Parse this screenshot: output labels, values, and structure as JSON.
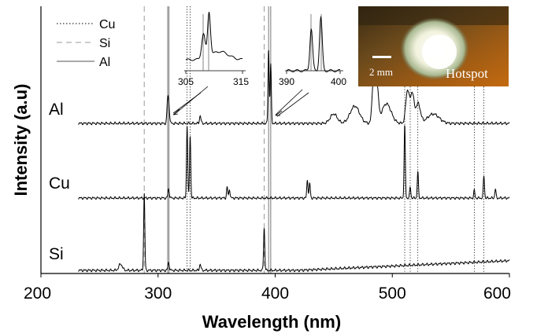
{
  "chart_data": {
    "type": "line",
    "title": "",
    "xlabel": "Wavelength (nm)",
    "ylabel": "Intensity (a.u)",
    "xlim": [
      200,
      600
    ],
    "xticks": [
      200,
      300,
      400,
      500,
      600
    ],
    "legend": {
      "placement": "top-left",
      "entries": [
        {
          "name": "Cu",
          "style": "dotted"
        },
        {
          "name": "Si",
          "style": "dashed"
        },
        {
          "name": "Al",
          "style": "solid"
        }
      ]
    },
    "reference_lines": {
      "Cu": [
        324.8,
        327.4,
        510.6,
        515.3,
        521.8,
        570.0,
        578.2
      ],
      "Si": [
        288.2,
        390.6
      ],
      "Al": [
        308.2,
        309.3,
        394.4,
        396.2
      ]
    },
    "series": [
      {
        "name": "Al",
        "baseline": 0.05,
        "peaks": [
          {
            "x": 308.2,
            "y": 0.3,
            "w": 0.6
          },
          {
            "x": 309.3,
            "y": 0.2,
            "w": 0.6
          },
          {
            "x": 336,
            "y": 0.1,
            "w": 0.6
          },
          {
            "x": 394.4,
            "y": 0.95,
            "w": 0.5
          },
          {
            "x": 396.2,
            "y": 0.75,
            "w": 0.5
          },
          {
            "x": 450,
            "y": 0.12,
            "w": 3
          },
          {
            "x": 468,
            "y": 0.22,
            "w": 4
          },
          {
            "x": 484,
            "y": 0.6,
            "w": 1.2
          },
          {
            "x": 487,
            "y": 0.45,
            "w": 1.2
          },
          {
            "x": 495,
            "y": 0.25,
            "w": 4
          },
          {
            "x": 513,
            "y": 0.42,
            "w": 1.5
          },
          {
            "x": 517,
            "y": 0.38,
            "w": 1.5
          },
          {
            "x": 522,
            "y": 0.25,
            "w": 2
          },
          {
            "x": 535,
            "y": 0.12,
            "w": 5
          }
        ]
      },
      {
        "name": "Cu",
        "baseline": 0.05,
        "peaks": [
          {
            "x": 309,
            "y": 0.12,
            "w": 0.6
          },
          {
            "x": 324.8,
            "y": 0.98,
            "w": 0.5
          },
          {
            "x": 327.4,
            "y": 0.85,
            "w": 0.5
          },
          {
            "x": 359,
            "y": 0.15,
            "w": 0.5
          },
          {
            "x": 361,
            "y": 0.12,
            "w": 0.5
          },
          {
            "x": 427.5,
            "y": 0.25,
            "w": 0.5
          },
          {
            "x": 429.5,
            "y": 0.2,
            "w": 0.5
          },
          {
            "x": 510.6,
            "y": 0.98,
            "w": 0.5
          },
          {
            "x": 515.3,
            "y": 0.15,
            "w": 0.5
          },
          {
            "x": 521.8,
            "y": 0.35,
            "w": 0.5
          },
          {
            "x": 570,
            "y": 0.1,
            "w": 0.5
          },
          {
            "x": 578.2,
            "y": 0.3,
            "w": 0.5
          },
          {
            "x": 588,
            "y": 0.12,
            "w": 0.5
          }
        ]
      },
      {
        "name": "Si",
        "baseline": 0.05,
        "slope": 0.35,
        "peaks": [
          {
            "x": 268,
            "y": 0.08,
            "w": 1.5
          },
          {
            "x": 288.2,
            "y": 0.98,
            "w": 0.5
          },
          {
            "x": 309,
            "y": 0.1,
            "w": 0.6
          },
          {
            "x": 336,
            "y": 0.08,
            "w": 0.6
          },
          {
            "x": 390.6,
            "y": 0.55,
            "w": 0.5
          }
        ]
      }
    ],
    "insets": [
      {
        "xlim": [
          305,
          315
        ],
        "tick_labels": [
          "305",
          "315"
        ]
      },
      {
        "xlim": [
          390,
          400
        ],
        "tick_labels": [
          "390",
          "400"
        ]
      }
    ],
    "photo": {
      "scale_label": "2 mm",
      "caption": "Hotspot"
    }
  }
}
